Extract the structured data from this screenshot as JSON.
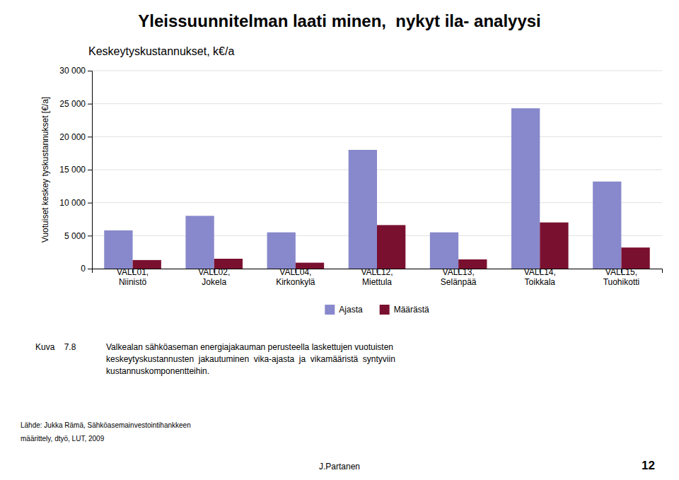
{
  "chart_data": {
    "type": "bar",
    "title": "Yleissuunnitelman laati minen,  nykyt ila- analyysi",
    "subtitle": "Keskeytyskustannukset, k€/a",
    "ylabel": "Vuotuiset keskey tyskustannukset [€/a]",
    "categories": [
      "VALL01,\nNiinistö",
      "VALL02,\nJokela",
      "VALL04,\nKirkonkylä",
      "VALL12,\nMiettula",
      "VALL13,\nSelänpää",
      "VALL14,\nToikkala",
      "VALL15,\nTuohikotti"
    ],
    "series": [
      {
        "name": "Ajasta",
        "color": "#8888cc",
        "values": [
          5800,
          8000,
          5500,
          18000,
          5500,
          24300,
          13200
        ]
      },
      {
        "name": "Määrästä",
        "color": "#7a1030",
        "values": [
          1300,
          1500,
          900,
          6600,
          1400,
          7000,
          3200
        ]
      }
    ],
    "ylim": [
      0,
      30000
    ],
    "yticks": [
      0,
      {
        "value": 5000,
        "label": "5 000"
      },
      {
        "value": 10000,
        "label": "10 000"
      },
      {
        "value": 15000,
        "label": "15 000"
      },
      {
        "value": 20000,
        "label": "20 000"
      },
      {
        "value": 25000,
        "label": "25 000"
      },
      {
        "value": 30000,
        "label": "30 000"
      }
    ],
    "grid": true,
    "legend": "bottom",
    "annotations": [
      "Kuva    7.8",
      "Valkealan sähköaseman energiajakauman perusteella laskettujen vuotuisten\nkeskeytyskustannusten  jakautuminen  vika-ajasta  ja  vikamääristä  syntyviin\nkustannuskomponentteihin.",
      "Lähde: Jukka Rämä, Sähköasemainvestointihankkeen",
      "määrittely, dtyö, LUT, 2009",
      "J.Partanen",
      "12"
    ]
  }
}
